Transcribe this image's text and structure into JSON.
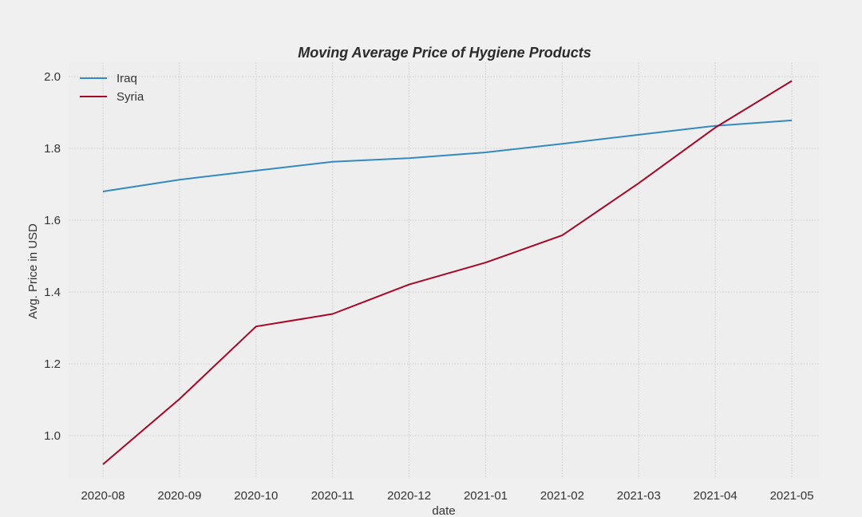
{
  "chart_data": {
    "type": "line",
    "title": "Moving Average Price of Hygiene Products",
    "xlabel": "date",
    "ylabel": "Avg. Price in USD",
    "x": [
      "2020-08",
      "2020-09",
      "2020-10",
      "2020-11",
      "2020-12",
      "2021-01",
      "2021-02",
      "2021-03",
      "2021-04",
      "2021-05"
    ],
    "yticks": [
      1.0,
      1.2,
      1.4,
      1.6,
      1.8,
      2.0
    ],
    "ylim": [
      0.88,
      2.04
    ],
    "grid": true,
    "legend_position": "top-left",
    "series": [
      {
        "name": "Iraq",
        "color": "#348abd",
        "values": [
          1.68,
          1.713,
          1.738,
          1.763,
          1.773,
          1.789,
          1.813,
          1.838,
          1.863,
          1.878
        ]
      },
      {
        "name": "Syria",
        "color": "#a60628",
        "values": [
          0.92,
          1.102,
          1.304,
          1.339,
          1.421,
          1.482,
          1.558,
          1.703,
          1.858,
          1.988
        ]
      }
    ]
  }
}
